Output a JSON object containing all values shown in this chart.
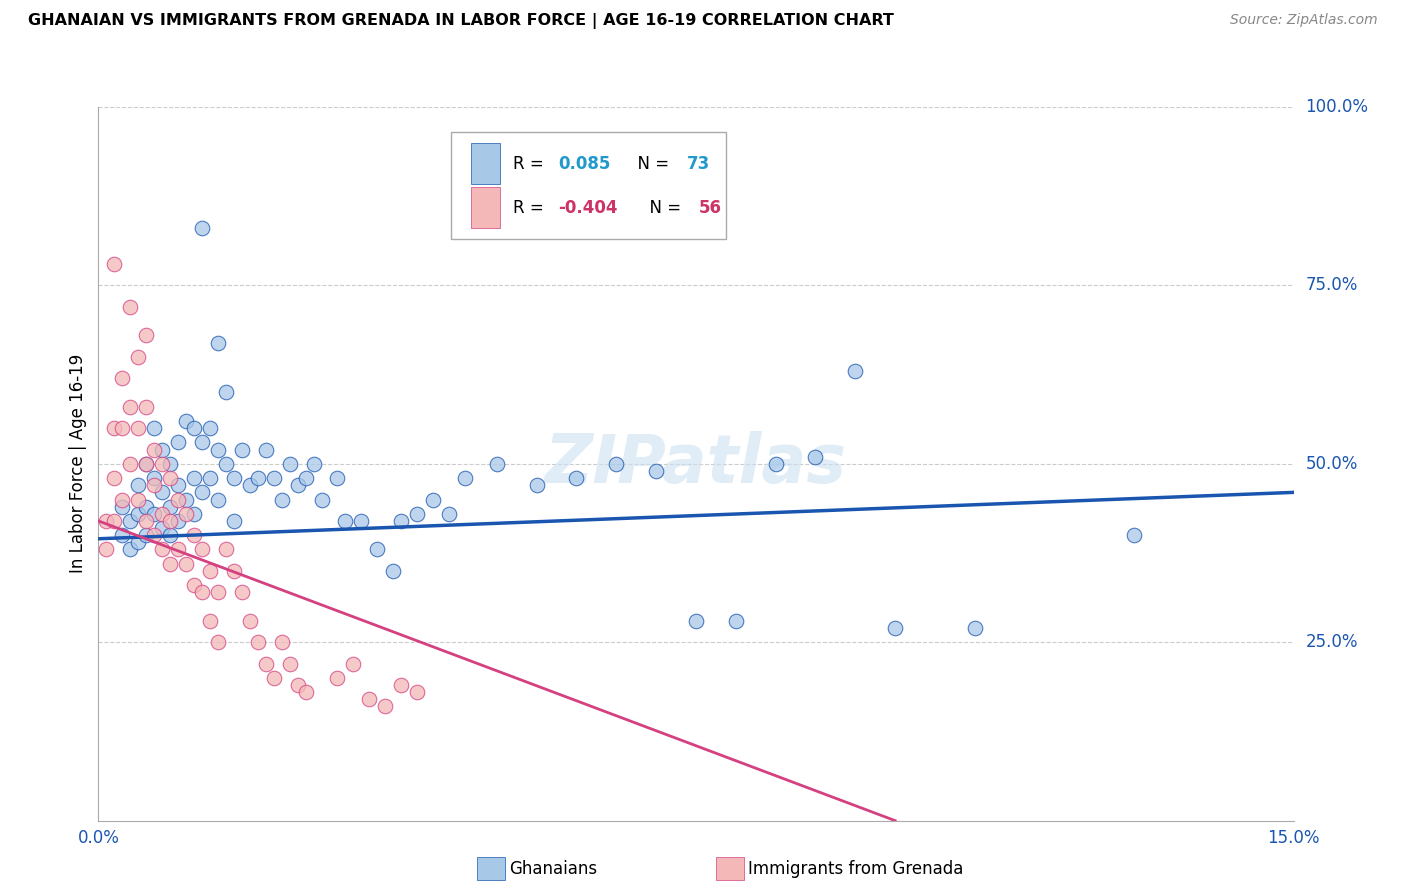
{
  "title": "GHANAIAN VS IMMIGRANTS FROM GRENADA IN LABOR FORCE | AGE 16-19 CORRELATION CHART",
  "source": "Source: ZipAtlas.com",
  "ylabel": "In Labor Force | Age 16-19",
  "xlim": [
    0.0,
    0.15
  ],
  "ylim": [
    0.0,
    1.0
  ],
  "ytick_positions": [
    1.0,
    0.75,
    0.5,
    0.25
  ],
  "ytick_labels": [
    "100.0%",
    "75.0%",
    "50.0%",
    "25.0%"
  ],
  "blue_color": "#a8c8e8",
  "pink_color": "#f4b8b8",
  "trend_blue": "#1a56b0",
  "trend_pink": "#d44080",
  "blue_scatter_x": [
    0.003,
    0.003,
    0.004,
    0.004,
    0.005,
    0.005,
    0.005,
    0.006,
    0.006,
    0.006,
    0.007,
    0.007,
    0.007,
    0.008,
    0.008,
    0.008,
    0.009,
    0.009,
    0.009,
    0.01,
    0.01,
    0.01,
    0.011,
    0.011,
    0.012,
    0.012,
    0.012,
    0.013,
    0.013,
    0.014,
    0.014,
    0.015,
    0.015,
    0.016,
    0.016,
    0.017,
    0.017,
    0.018,
    0.019,
    0.02,
    0.021,
    0.022,
    0.023,
    0.024,
    0.025,
    0.026,
    0.027,
    0.028,
    0.03,
    0.031,
    0.033,
    0.035,
    0.037,
    0.038,
    0.04,
    0.042,
    0.044,
    0.046,
    0.05,
    0.055,
    0.06,
    0.065,
    0.07,
    0.075,
    0.08,
    0.085,
    0.09,
    0.095,
    0.1,
    0.11,
    0.013,
    0.015,
    0.13
  ],
  "blue_scatter_y": [
    0.44,
    0.4,
    0.42,
    0.38,
    0.47,
    0.43,
    0.39,
    0.5,
    0.44,
    0.4,
    0.55,
    0.48,
    0.43,
    0.52,
    0.46,
    0.41,
    0.5,
    0.44,
    0.4,
    0.53,
    0.47,
    0.42,
    0.56,
    0.45,
    0.55,
    0.48,
    0.43,
    0.53,
    0.46,
    0.55,
    0.48,
    0.52,
    0.45,
    0.6,
    0.5,
    0.48,
    0.42,
    0.52,
    0.47,
    0.48,
    0.52,
    0.48,
    0.45,
    0.5,
    0.47,
    0.48,
    0.5,
    0.45,
    0.48,
    0.42,
    0.42,
    0.38,
    0.35,
    0.42,
    0.43,
    0.45,
    0.43,
    0.48,
    0.5,
    0.47,
    0.48,
    0.5,
    0.49,
    0.28,
    0.28,
    0.5,
    0.51,
    0.63,
    0.27,
    0.27,
    0.83,
    0.67,
    0.4
  ],
  "pink_scatter_x": [
    0.001,
    0.001,
    0.002,
    0.002,
    0.002,
    0.003,
    0.003,
    0.003,
    0.004,
    0.004,
    0.005,
    0.005,
    0.005,
    0.006,
    0.006,
    0.006,
    0.007,
    0.007,
    0.007,
    0.008,
    0.008,
    0.008,
    0.009,
    0.009,
    0.009,
    0.01,
    0.01,
    0.011,
    0.011,
    0.012,
    0.012,
    0.013,
    0.013,
    0.014,
    0.014,
    0.015,
    0.015,
    0.016,
    0.017,
    0.018,
    0.019,
    0.02,
    0.021,
    0.022,
    0.023,
    0.024,
    0.025,
    0.026,
    0.03,
    0.032,
    0.034,
    0.036,
    0.038,
    0.04,
    0.002,
    0.004,
    0.006
  ],
  "pink_scatter_y": [
    0.42,
    0.38,
    0.55,
    0.48,
    0.42,
    0.62,
    0.55,
    0.45,
    0.58,
    0.5,
    0.65,
    0.55,
    0.45,
    0.58,
    0.5,
    0.42,
    0.52,
    0.47,
    0.4,
    0.5,
    0.43,
    0.38,
    0.48,
    0.42,
    0.36,
    0.45,
    0.38,
    0.43,
    0.36,
    0.4,
    0.33,
    0.38,
    0.32,
    0.35,
    0.28,
    0.32,
    0.25,
    0.38,
    0.35,
    0.32,
    0.28,
    0.25,
    0.22,
    0.2,
    0.25,
    0.22,
    0.19,
    0.18,
    0.2,
    0.22,
    0.17,
    0.16,
    0.19,
    0.18,
    0.78,
    0.72,
    0.68
  ],
  "blue_trend_x": [
    0.0,
    0.15
  ],
  "blue_trend_y": [
    0.395,
    0.46
  ],
  "pink_trend_x": [
    0.0,
    0.1
  ],
  "pink_trend_y": [
    0.42,
    0.0
  ]
}
